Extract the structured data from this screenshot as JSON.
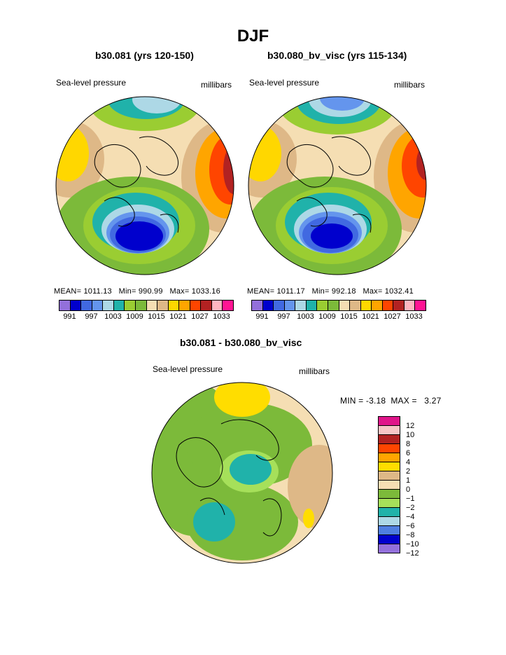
{
  "page": {
    "title": "DJF",
    "section_title": "b30.081 - b30.080_bv_visc"
  },
  "panels": [
    {
      "title": "b30.081 (yrs 120-150)",
      "variable": "Sea-level pressure",
      "units": "millibars",
      "mean_label": "MEAN=",
      "mean": "1011.13",
      "min_label": "Min=",
      "min": "990.99",
      "max_label": "Max=",
      "max": "1033.16"
    },
    {
      "title": "b30.080_bv_visc (yrs 115-134)",
      "variable": "Sea-level pressure",
      "units": "millibars",
      "mean_label": "MEAN=",
      "mean": "1011.17",
      "min_label": "Min=",
      "min": "992.18",
      "max_label": "Max=",
      "max": "1032.41"
    }
  ],
  "diff_panel": {
    "variable": "Sea-level pressure",
    "units": "millibars",
    "min_label": "MIN =",
    "min": "-3.18",
    "max_label": "MAX =",
    "max": "3.27"
  },
  "colorbar_horizontal": {
    "colors": [
      "#9370db",
      "#0000cd",
      "#4169e1",
      "#6495ed",
      "#add8e6",
      "#20b2aa",
      "#9acd32",
      "#7cba3a",
      "#f5deb3",
      "#deb887",
      "#ffd700",
      "#ffa500",
      "#ff4500",
      "#b22222",
      "#ffb6c1",
      "#ff1493"
    ],
    "tick_labels": [
      "991",
      "997",
      "1003",
      "1009",
      "1015",
      "1021",
      "1027",
      "1033"
    ]
  },
  "colorbar_vertical": {
    "colors": [
      "#e0158a",
      "#f6c6c6",
      "#b22222",
      "#ff4500",
      "#ffa500",
      "#ffdd00",
      "#deb887",
      "#f5deb3",
      "#7cba3a",
      "#a6e05a",
      "#20b2aa",
      "#add8e6",
      "#4f7fe0",
      "#0000cd",
      "#9370db"
    ],
    "labels": [
      "12",
      "10",
      "8",
      "6",
      "4",
      "2",
      "1",
      "0",
      "−1",
      "−2",
      "−4",
      "−6",
      "−8",
      "−10",
      "−12"
    ]
  }
}
